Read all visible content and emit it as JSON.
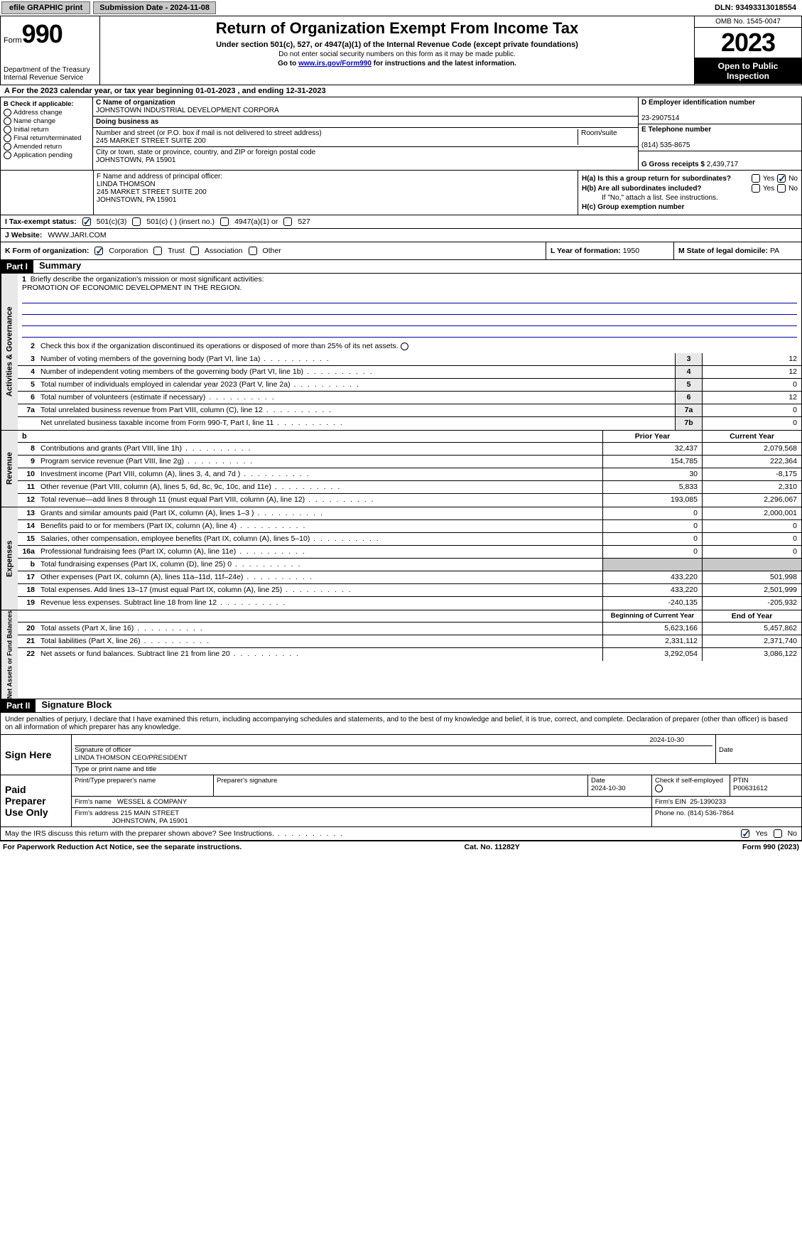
{
  "topbar": {
    "efile": "efile GRAPHIC print",
    "submission": "Submission Date - 2024-11-08",
    "dln": "DLN: 93493313018554"
  },
  "header": {
    "form_prefix": "Form",
    "form_no": "990",
    "dept": "Department of the Treasury Internal Revenue Service",
    "title": "Return of Organization Exempt From Income Tax",
    "subtitle": "Under section 501(c), 527, or 4947(a)(1) of the Internal Revenue Code (except private foundations)",
    "ssn_note": "Do not enter social security numbers on this form as it may be made public.",
    "goto": "Go to ",
    "goto_link": "www.irs.gov/Form990",
    "goto_rest": " for instructions and the latest information.",
    "omb": "OMB No. 1545-0047",
    "year": "2023",
    "inspection": "Open to Public Inspection"
  },
  "sectionA": "For the 2023 calendar year, or tax year beginning 01-01-2023   , and ending 12-31-2023",
  "boxB": {
    "label": "B Check if applicable:",
    "items": [
      "Address change",
      "Name change",
      "Initial return",
      "Final return/terminated",
      "Amended return",
      "Application pending"
    ]
  },
  "boxC": {
    "name_lbl": "C Name of organization",
    "name": "JOHNSTOWN INDUSTRIAL DEVELOPMENT CORPORA",
    "dba_lbl": "Doing business as",
    "dba": "",
    "street_lbl": "Number and street (or P.O. box if mail is not delivered to street address)",
    "room_lbl": "Room/suite",
    "street": "245 MARKET STREET SUITE 200",
    "city_lbl": "City or town, state or province, country, and ZIP or foreign postal code",
    "city": "JOHNSTOWN, PA  15901"
  },
  "boxD": {
    "lbl": "D Employer identification number",
    "val": "23-2907514"
  },
  "boxE": {
    "lbl": "E Telephone number",
    "val": "(814) 535-8675"
  },
  "boxG": {
    "lbl": "G Gross receipts $",
    "val": "2,439,717"
  },
  "boxF": {
    "lbl": "F  Name and address of principal officer:",
    "name": "LINDA THOMSON",
    "addr1": "245 MARKET STREET SUITE 200",
    "addr2": "JOHNSTOWN, PA  15901"
  },
  "boxH": {
    "a_lbl": "H(a)  Is this a group return for subordinates?",
    "b_lbl": "H(b)  Are all subordinates included?",
    "b_note": "If \"No,\" attach a list. See instructions.",
    "c_lbl": "H(c)  Group exemption number",
    "yes": "Yes",
    "no": "No"
  },
  "boxI": {
    "lbl": "I   Tax-exempt status:",
    "opt1": "501(c)(3)",
    "opt2": "501(c) (  ) (insert no.)",
    "opt3": "4947(a)(1) or",
    "opt4": "527"
  },
  "boxJ": {
    "lbl": "J   Website:",
    "val": "WWW.JARI.COM"
  },
  "boxK": {
    "lbl": "K Form of organization:",
    "opts": [
      "Corporation",
      "Trust",
      "Association",
      "Other"
    ]
  },
  "boxL": {
    "lbl": "L Year of formation:",
    "val": "1950"
  },
  "boxM": {
    "lbl": "M State of legal domicile:",
    "val": "PA"
  },
  "part1": {
    "hdr": "Part I",
    "title": "Summary"
  },
  "summary": {
    "q1_lbl": "Briefly describe the organization's mission or most significant activities:",
    "q1_val": "PROMOTION OF ECONOMIC DEVELOPMENT IN THE REGION.",
    "q2": "Check this box      if the organization discontinued its operations or disposed of more than 25% of its net assets.",
    "rows_gov": [
      {
        "n": "3",
        "d": "Number of voting members of the governing body (Part VI, line 1a)",
        "nc": "3",
        "v": "12"
      },
      {
        "n": "4",
        "d": "Number of independent voting members of the governing body (Part VI, line 1b)",
        "nc": "4",
        "v": "12"
      },
      {
        "n": "5",
        "d": "Total number of individuals employed in calendar year 2023 (Part V, line 2a)",
        "nc": "5",
        "v": "0"
      },
      {
        "n": "6",
        "d": "Total number of volunteers (estimate if necessary)",
        "nc": "6",
        "v": "12"
      },
      {
        "n": "7a",
        "d": "Total unrelated business revenue from Part VIII, column (C), line 12",
        "nc": "7a",
        "v": "0"
      },
      {
        "n": "",
        "d": "Net unrelated business taxable income from Form 990-T, Part I, line 11",
        "nc": "7b",
        "v": "0"
      }
    ],
    "col_b": "b",
    "col_prior": "Prior Year",
    "col_curr": "Current Year",
    "rows_rev": [
      {
        "n": "8",
        "d": "Contributions and grants (Part VIII, line 1h)",
        "p": "32,437",
        "c": "2,079,568"
      },
      {
        "n": "9",
        "d": "Program service revenue (Part VIII, line 2g)",
        "p": "154,785",
        "c": "222,364"
      },
      {
        "n": "10",
        "d": "Investment income (Part VIII, column (A), lines 3, 4, and 7d )",
        "p": "30",
        "c": "-8,175"
      },
      {
        "n": "11",
        "d": "Other revenue (Part VIII, column (A), lines 5, 6d, 8c, 9c, 10c, and 11e)",
        "p": "5,833",
        "c": "2,310"
      },
      {
        "n": "12",
        "d": "Total revenue—add lines 8 through 11 (must equal Part VIII, column (A), line 12)",
        "p": "193,085",
        "c": "2,296,067"
      }
    ],
    "rows_exp": [
      {
        "n": "13",
        "d": "Grants and similar amounts paid (Part IX, column (A), lines 1–3 )",
        "p": "0",
        "c": "2,000,001"
      },
      {
        "n": "14",
        "d": "Benefits paid to or for members (Part IX, column (A), line 4)",
        "p": "0",
        "c": "0"
      },
      {
        "n": "15",
        "d": "Salaries, other compensation, employee benefits (Part IX, column (A), lines 5–10)",
        "p": "0",
        "c": "0"
      },
      {
        "n": "16a",
        "d": "Professional fundraising fees (Part IX, column (A), line 11e)",
        "p": "0",
        "c": "0"
      },
      {
        "n": "b",
        "d": "Total fundraising expenses (Part IX, column (D), line 25) 0",
        "p": "",
        "c": "",
        "shade": true
      },
      {
        "n": "17",
        "d": "Other expenses (Part IX, column (A), lines 11a–11d, 11f–24e)",
        "p": "433,220",
        "c": "501,998"
      },
      {
        "n": "18",
        "d": "Total expenses. Add lines 13–17 (must equal Part IX, column (A), line 25)",
        "p": "433,220",
        "c": "2,501,999"
      },
      {
        "n": "19",
        "d": "Revenue less expenses. Subtract line 18 from line 12",
        "p": "-240,135",
        "c": "-205,932"
      }
    ],
    "col_begin": "Beginning of Current Year",
    "col_end": "End of Year",
    "rows_net": [
      {
        "n": "20",
        "d": "Total assets (Part X, line 16)",
        "p": "5,623,166",
        "c": "5,457,862"
      },
      {
        "n": "21",
        "d": "Total liabilities (Part X, line 26)",
        "p": "2,331,112",
        "c": "2,371,740"
      },
      {
        "n": "22",
        "d": "Net assets or fund balances. Subtract line 21 from line 20",
        "p": "3,292,054",
        "c": "3,086,122"
      }
    ],
    "side_gov": "Activities & Governance",
    "side_rev": "Revenue",
    "side_exp": "Expenses",
    "side_net": "Net Assets or Fund Balances"
  },
  "part2": {
    "hdr": "Part II",
    "title": "Signature Block"
  },
  "sig": {
    "intro": "Under penalties of perjury, I declare that I have examined this return, including accompanying schedules and statements, and to the best of my knowledge and belief, it is true, correct, and complete. Declaration of preparer (other than officer) is based on all information of which preparer has any knowledge.",
    "sign_here": "Sign Here",
    "sig_officer": "Signature of officer",
    "officer": "LINDA THOMSON  CEO/PRESIDENT",
    "type_title": "Type or print name and title",
    "date_lbl": "Date",
    "date1": "2024-10-30",
    "paid": "Paid Preparer Use Only",
    "prep_name_lbl": "Print/Type preparer's name",
    "prep_sig_lbl": "Preparer's signature",
    "prep_date": "2024-10-30",
    "check_self": "Check        if self-employed",
    "ptin_lbl": "PTIN",
    "ptin": "P00631612",
    "firm_name_lbl": "Firm's name",
    "firm_name": "WESSEL & COMPANY",
    "firm_ein_lbl": "Firm's EIN",
    "firm_ein": "25-1390233",
    "firm_addr_lbl": "Firm's address",
    "firm_addr1": "215 MAIN STREET",
    "firm_addr2": "JOHNSTOWN, PA  15901",
    "phone_lbl": "Phone no.",
    "phone": "(814) 536-7864",
    "discuss": "May the IRS discuss this return with the preparer shown above? See Instructions.",
    "yes": "Yes",
    "no": "No"
  },
  "footer": {
    "left": "For Paperwork Reduction Act Notice, see the separate instructions.",
    "mid": "Cat. No. 11282Y",
    "right": "Form 990 (2023)"
  }
}
